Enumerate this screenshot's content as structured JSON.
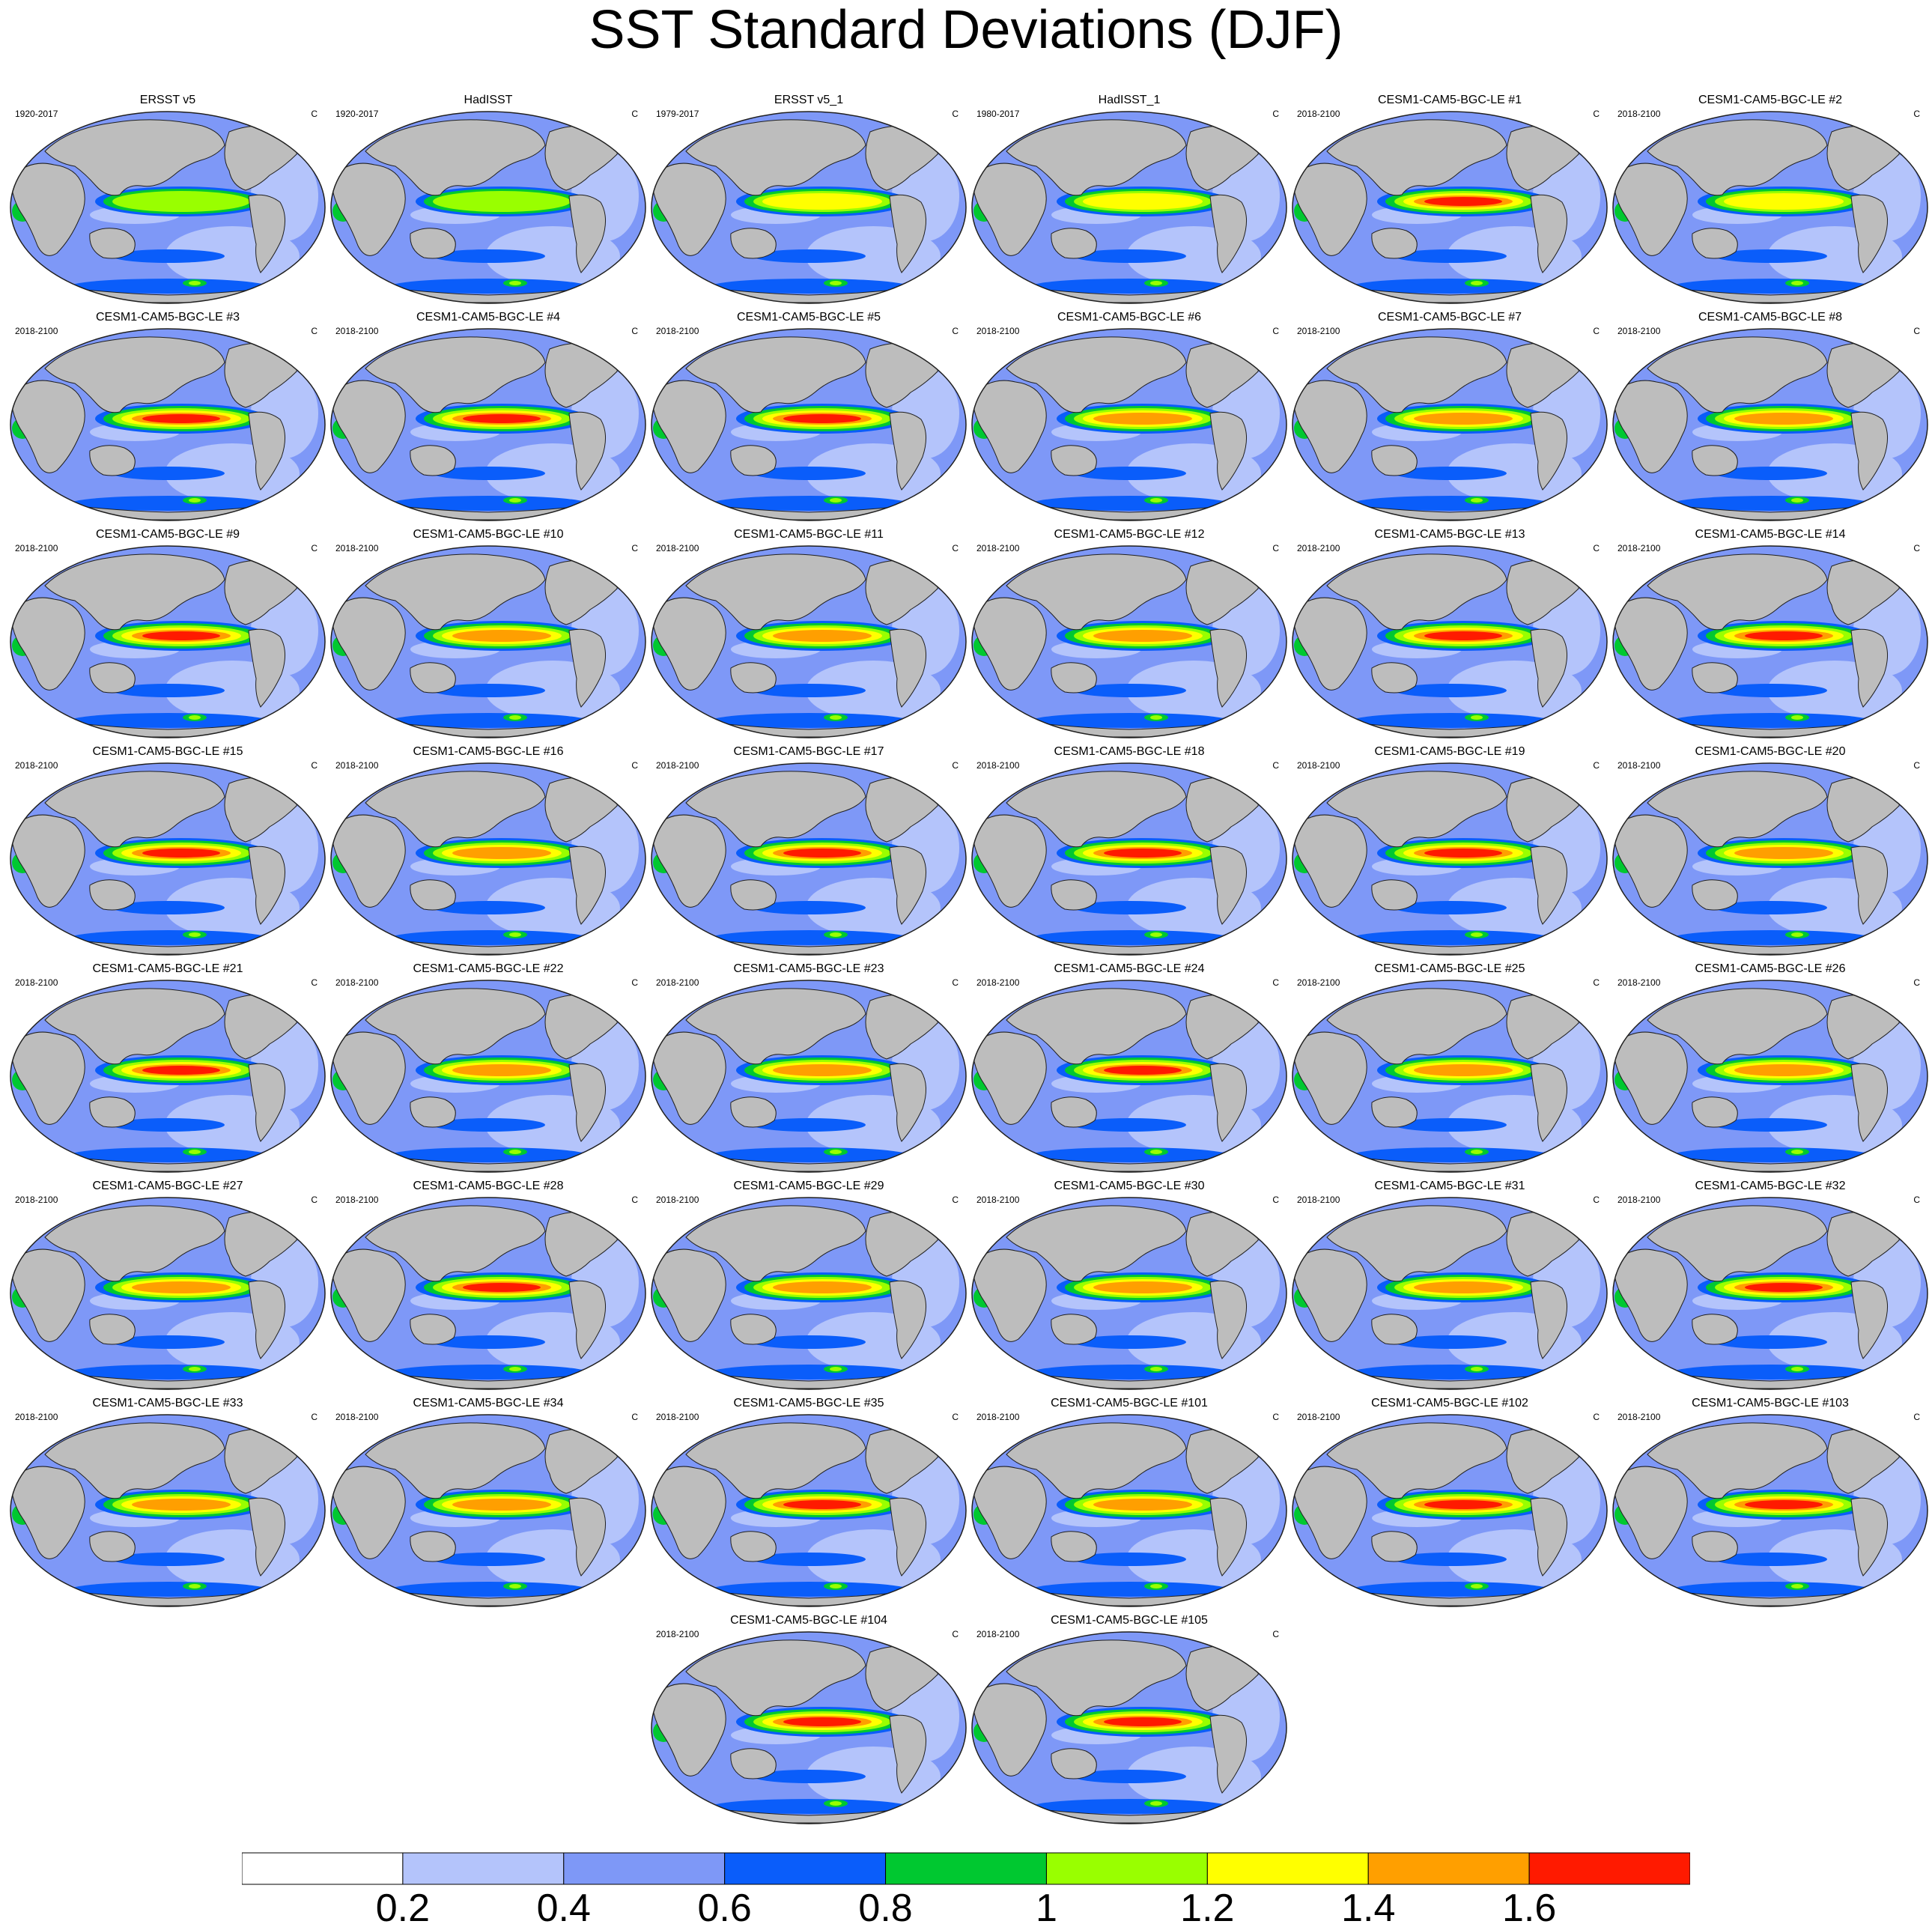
{
  "title": "SST Standard Deviations (DJF)",
  "unit_label": "C",
  "colors": {
    "land": "#bdbdbd",
    "outline": "#1f1f1f",
    "levels": [
      "#ffffff",
      "#b4c4fb",
      "#7e98f7",
      "#0a5dfa",
      "#00c830",
      "#99ff00",
      "#ffff00",
      "#ff9f00",
      "#ff1a00"
    ]
  },
  "colorbar": {
    "labels": [
      "0.2",
      "0.4",
      "0.6",
      "0.8",
      "1",
      "1.2",
      "1.4",
      "1.6"
    ]
  },
  "panels": [
    {
      "title": "ERSST v5",
      "period": "1920-2017",
      "peak_level": 5
    },
    {
      "title": "HadISST",
      "period": "1920-2017",
      "peak_level": 5
    },
    {
      "title": "ERSST v5_1",
      "period": "1979-2017",
      "peak_level": 6
    },
    {
      "title": "HadISST_1",
      "period": "1980-2017",
      "peak_level": 6
    },
    {
      "title": "CESM1-CAM5-BGC-LE #1",
      "period": "2018-2100",
      "peak_level": 8
    },
    {
      "title": "CESM1-CAM5-BGC-LE #2",
      "period": "2018-2100",
      "peak_level": 6
    },
    {
      "title": "CESM1-CAM5-BGC-LE #3",
      "period": "2018-2100",
      "peak_level": 8
    },
    {
      "title": "CESM1-CAM5-BGC-LE #4",
      "period": "2018-2100",
      "peak_level": 8
    },
    {
      "title": "CESM1-CAM5-BGC-LE #5",
      "period": "2018-2100",
      "peak_level": 8
    },
    {
      "title": "CESM1-CAM5-BGC-LE #6",
      "period": "2018-2100",
      "peak_level": 7
    },
    {
      "title": "CESM1-CAM5-BGC-LE #7",
      "period": "2018-2100",
      "peak_level": 7
    },
    {
      "title": "CESM1-CAM5-BGC-LE #8",
      "period": "2018-2100",
      "peak_level": 7
    },
    {
      "title": "CESM1-CAM5-BGC-LE #9",
      "period": "2018-2100",
      "peak_level": 8
    },
    {
      "title": "CESM1-CAM5-BGC-LE #10",
      "period": "2018-2100",
      "peak_level": 7
    },
    {
      "title": "CESM1-CAM5-BGC-LE #11",
      "period": "2018-2100",
      "peak_level": 7
    },
    {
      "title": "CESM1-CAM5-BGC-LE #12",
      "period": "2018-2100",
      "peak_level": 7
    },
    {
      "title": "CESM1-CAM5-BGC-LE #13",
      "period": "2018-2100",
      "peak_level": 8
    },
    {
      "title": "CESM1-CAM5-BGC-LE #14",
      "period": "2018-2100",
      "peak_level": 8
    },
    {
      "title": "CESM1-CAM5-BGC-LE #15",
      "period": "2018-2100",
      "peak_level": 8
    },
    {
      "title": "CESM1-CAM5-BGC-LE #16",
      "period": "2018-2100",
      "peak_level": 7
    },
    {
      "title": "CESM1-CAM5-BGC-LE #17",
      "period": "2018-2100",
      "peak_level": 8
    },
    {
      "title": "CESM1-CAM5-BGC-LE #18",
      "period": "2018-2100",
      "peak_level": 8
    },
    {
      "title": "CESM1-CAM5-BGC-LE #19",
      "period": "2018-2100",
      "peak_level": 8
    },
    {
      "title": "CESM1-CAM5-BGC-LE #20",
      "period": "2018-2100",
      "peak_level": 7
    },
    {
      "title": "CESM1-CAM5-BGC-LE #21",
      "period": "2018-2100",
      "peak_level": 8
    },
    {
      "title": "CESM1-CAM5-BGC-LE #22",
      "period": "2018-2100",
      "peak_level": 7
    },
    {
      "title": "CESM1-CAM5-BGC-LE #23",
      "period": "2018-2100",
      "peak_level": 7
    },
    {
      "title": "CESM1-CAM5-BGC-LE #24",
      "period": "2018-2100",
      "peak_level": 8
    },
    {
      "title": "CESM1-CAM5-BGC-LE #25",
      "period": "2018-2100",
      "peak_level": 7
    },
    {
      "title": "CESM1-CAM5-BGC-LE #26",
      "period": "2018-2100",
      "peak_level": 7
    },
    {
      "title": "CESM1-CAM5-BGC-LE #27",
      "period": "2018-2100",
      "peak_level": 7
    },
    {
      "title": "CESM1-CAM5-BGC-LE #28",
      "period": "2018-2100",
      "peak_level": 8
    },
    {
      "title": "CESM1-CAM5-BGC-LE #29",
      "period": "2018-2100",
      "peak_level": 7
    },
    {
      "title": "CESM1-CAM5-BGC-LE #30",
      "period": "2018-2100",
      "peak_level": 7
    },
    {
      "title": "CESM1-CAM5-BGC-LE #31",
      "period": "2018-2100",
      "peak_level": 7
    },
    {
      "title": "CESM1-CAM5-BGC-LE #32",
      "period": "2018-2100",
      "peak_level": 8
    },
    {
      "title": "CESM1-CAM5-BGC-LE #33",
      "period": "2018-2100",
      "peak_level": 7
    },
    {
      "title": "CESM1-CAM5-BGC-LE #34",
      "period": "2018-2100",
      "peak_level": 7
    },
    {
      "title": "CESM1-CAM5-BGC-LE #35",
      "period": "2018-2100",
      "peak_level": 8
    },
    {
      "title": "CESM1-CAM5-BGC-LE #101",
      "period": "2018-2100",
      "peak_level": 7
    },
    {
      "title": "CESM1-CAM5-BGC-LE #102",
      "period": "2018-2100",
      "peak_level": 8
    },
    {
      "title": "CESM1-CAM5-BGC-LE #103",
      "period": "2018-2100",
      "peak_level": 8
    },
    {
      "title": "CESM1-CAM5-BGC-LE #104",
      "period": "2018-2100",
      "peak_level": 8
    },
    {
      "title": "CESM1-CAM5-BGC-LE #105",
      "period": "2018-2100",
      "peak_level": 8
    }
  ]
}
